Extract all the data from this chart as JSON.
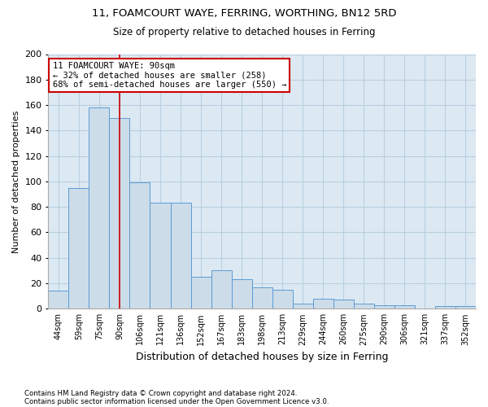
{
  "title1": "11, FOAMCOURT WAYE, FERRING, WORTHING, BN12 5RD",
  "title2": "Size of property relative to detached houses in Ferring",
  "xlabel": "Distribution of detached houses by size in Ferring",
  "ylabel": "Number of detached properties",
  "categories": [
    "44sqm",
    "59sqm",
    "75sqm",
    "90sqm",
    "106sqm",
    "121sqm",
    "136sqm",
    "152sqm",
    "167sqm",
    "183sqm",
    "198sqm",
    "213sqm",
    "229sqm",
    "244sqm",
    "260sqm",
    "275sqm",
    "290sqm",
    "306sqm",
    "321sqm",
    "337sqm",
    "352sqm"
  ],
  "values": [
    14,
    95,
    158,
    150,
    99,
    83,
    83,
    25,
    30,
    23,
    17,
    15,
    4,
    8,
    7,
    4,
    3,
    3,
    0,
    2,
    2
  ],
  "bar_color": "#ccdce8",
  "bar_edge_color": "#5b9bd5",
  "highlight_index": 3,
  "highlight_line_color": "#cc0000",
  "ylim": [
    0,
    200
  ],
  "yticks": [
    0,
    20,
    40,
    60,
    80,
    100,
    120,
    140,
    160,
    180,
    200
  ],
  "annotation_line1": "11 FOAMCOURT WAYE: 90sqm",
  "annotation_line2": "← 32% of detached houses are smaller (258)",
  "annotation_line3": "68% of semi-detached houses are larger (550) →",
  "annotation_box_color": "#ffffff",
  "annotation_box_edge": "#cc0000",
  "footer1": "Contains HM Land Registry data © Crown copyright and database right 2024.",
  "footer2": "Contains public sector information licensed under the Open Government Licence v3.0.",
  "background_color": "#ffffff",
  "plot_bg_color": "#dce9f3",
  "grid_color": "#b8cfe0"
}
